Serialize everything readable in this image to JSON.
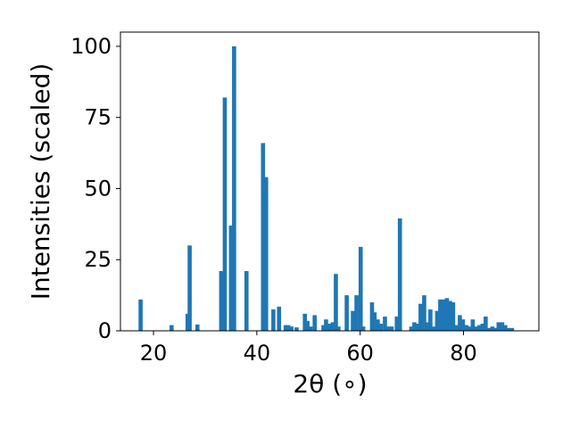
{
  "chart_data": {
    "type": "bar",
    "title": "",
    "xlabel": "2θ (∘)",
    "ylabel": "Intensities (scaled)",
    "xlim": [
      13.6,
      94.6
    ],
    "ylim": [
      0,
      105
    ],
    "xticks": [
      20,
      40,
      60,
      80
    ],
    "yticks": [
      0,
      25,
      50,
      75,
      100
    ],
    "grid": false,
    "bar_color": "#1f77b4",
    "bar_width": 0.8,
    "x": [
      17.5,
      23.5,
      26.6,
      27.0,
      28.5,
      33.1,
      33.8,
      35.0,
      35.6,
      38.0,
      41.2,
      41.8,
      43.2,
      44.3,
      45.6,
      46.1,
      46.7,
      47.7,
      49.3,
      49.8,
      50.4,
      51.2,
      52.9,
      53.4,
      54.0,
      54.7,
      55.3,
      55.8,
      57.4,
      58.6,
      59.3,
      60.1,
      60.6,
      62.3,
      62.8,
      63.4,
      64.0,
      64.8,
      65.5,
      66.1,
      67.1,
      67.7,
      69.9,
      70.5,
      71.1,
      71.7,
      72.4,
      73.0,
      73.6,
      74.2,
      74.9,
      75.5,
      76.1,
      76.8,
      77.4,
      78.0,
      78.7,
      79.3,
      79.9,
      80.6,
      81.2,
      81.8,
      82.4,
      83.1,
      83.7,
      84.3,
      85.0,
      85.6,
      86.2,
      86.8,
      87.5,
      88.1,
      88.7,
      89.4
    ]
  },
  "values": [
    11,
    2,
    6,
    30,
    2.2,
    21,
    82,
    37,
    100,
    21,
    66,
    54,
    7.5,
    8.5,
    2,
    2,
    1.5,
    1.2,
    6,
    3.5,
    1.5,
    5.5,
    2,
    4,
    2.5,
    3,
    20,
    1.5,
    12.5,
    7,
    12.5,
    29.5,
    1.5,
    10,
    6.5,
    4,
    2.5,
    5,
    1.5,
    1.5,
    5,
    39.5,
    1.5,
    3,
    2.5,
    9.5,
    12.5,
    3,
    7.5,
    1.5,
    7,
    11,
    11,
    11.5,
    10.5,
    10,
    2,
    5.5,
    4,
    2,
    1.5,
    4,
    1.5,
    2,
    2.5,
    5,
    1,
    1.5,
    1,
    3,
    3,
    2,
    1,
    1
  ]
}
